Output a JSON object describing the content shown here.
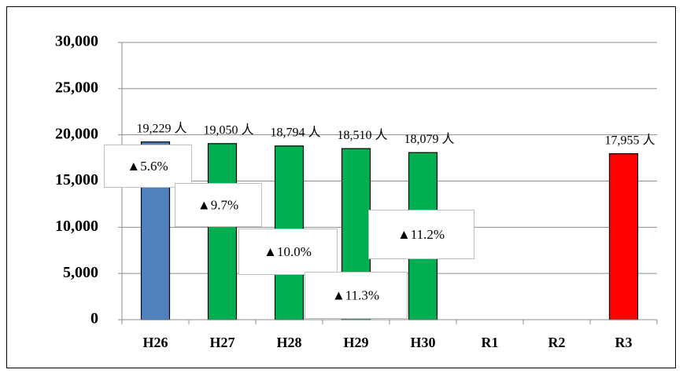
{
  "chart_data": {
    "type": "bar",
    "categories": [
      "H26",
      "H27",
      "H28",
      "H29",
      "H30",
      "R1",
      "R2",
      "R3"
    ],
    "values": [
      19229,
      19050,
      18794,
      18510,
      18079,
      null,
      null,
      17955
    ],
    "value_labels": [
      "19,229 人",
      "19,050 人",
      "18,794 人",
      "18,510 人",
      "18,079 人",
      null,
      null,
      "17,955 人"
    ],
    "colors": [
      "#4f81bd",
      "#00b050",
      "#00b050",
      "#00b050",
      "#00b050",
      null,
      null,
      "#ff0000"
    ],
    "ylim": [
      0,
      30000
    ],
    "yticks": [
      0,
      {
        "value": 5000,
        "label": "5,000"
      },
      {
        "value": 10000,
        "label": "10,000"
      },
      {
        "value": 15000,
        "label": "15,000"
      },
      {
        "value": 20000,
        "label": "20,000"
      },
      {
        "value": 25000,
        "label": "25,000"
      },
      {
        "value": 30000,
        "label": "30,000"
      }
    ],
    "grid": true,
    "annotations": [
      "▲5.6%",
      "▲9.7%",
      "▲10.0%",
      "▲11.3%",
      "▲11.2%"
    ]
  }
}
